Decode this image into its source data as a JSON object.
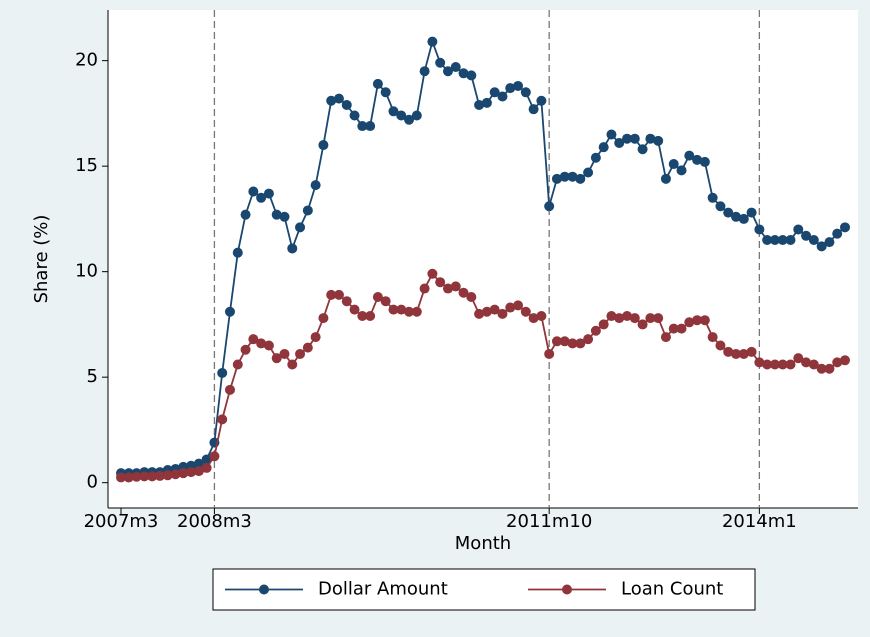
{
  "chart_data": {
    "type": "line",
    "y_label": "Share (%)",
    "x_label": "Month",
    "categories": [
      "2007m3",
      null,
      null,
      null,
      null,
      null,
      null,
      null,
      null,
      null,
      null,
      null,
      "2008m3",
      null,
      null,
      null,
      null,
      null,
      null,
      null,
      null,
      null,
      null,
      null,
      null,
      null,
      null,
      null,
      null,
      null,
      null,
      null,
      null,
      null,
      null,
      null,
      null,
      null,
      null,
      null,
      null,
      null,
      null,
      null,
      null,
      null,
      null,
      null,
      null,
      null,
      null,
      null,
      null,
      null,
      null,
      "2011m10",
      null,
      null,
      null,
      null,
      null,
      null,
      null,
      null,
      null,
      null,
      null,
      null,
      null,
      null,
      null,
      null,
      null,
      null,
      null,
      null,
      null,
      null,
      null,
      null,
      null,
      null,
      "2014m1",
      null,
      null,
      null,
      null,
      null,
      null,
      null,
      null,
      null,
      null,
      null
    ],
    "vlines": [
      "2008m3",
      "2011m10",
      "2014m1"
    ],
    "series": [
      {
        "name": "Dollar Amount",
        "color": "#1a476f",
        "values": [
          0.45,
          0.45,
          0.45,
          0.5,
          0.5,
          0.5,
          0.6,
          0.65,
          0.75,
          0.8,
          0.9,
          1.1,
          1.9,
          5.2,
          8.1,
          10.9,
          12.7,
          13.8,
          13.5,
          13.7,
          12.7,
          12.6,
          11.1,
          12.1,
          12.9,
          14.1,
          16.0,
          18.1,
          18.2,
          17.9,
          17.4,
          16.9,
          16.9,
          18.9,
          18.5,
          17.6,
          17.4,
          17.2,
          17.4,
          19.5,
          20.9,
          19.9,
          19.5,
          19.7,
          19.4,
          19.3,
          17.9,
          18.0,
          18.5,
          18.3,
          18.7,
          18.8,
          18.5,
          17.7,
          18.1,
          13.1,
          14.4,
          14.5,
          14.5,
          14.4,
          14.7,
          15.4,
          15.9,
          16.5,
          16.1,
          16.3,
          16.3,
          15.8,
          16.3,
          16.2,
          14.4,
          15.1,
          14.8,
          15.5,
          15.3,
          15.2,
          13.5,
          13.1,
          12.8,
          12.6,
          12.5,
          12.8,
          12.0,
          11.5,
          11.5,
          11.5,
          11.5,
          12.0,
          11.7,
          11.5,
          11.2,
          11.4,
          11.8,
          12.1
        ]
      },
      {
        "name": "Loan Count",
        "color": "#90353b",
        "values": [
          0.25,
          0.25,
          0.28,
          0.3,
          0.3,
          0.32,
          0.35,
          0.4,
          0.45,
          0.5,
          0.55,
          0.7,
          1.25,
          3.0,
          4.4,
          5.6,
          6.3,
          6.8,
          6.6,
          6.5,
          5.9,
          6.1,
          5.6,
          6.1,
          6.4,
          6.9,
          7.8,
          8.9,
          8.9,
          8.6,
          8.2,
          7.9,
          7.9,
          8.8,
          8.6,
          8.2,
          8.2,
          8.1,
          8.1,
          9.2,
          9.9,
          9.5,
          9.2,
          9.3,
          9.0,
          8.8,
          8.0,
          8.1,
          8.2,
          8.0,
          8.3,
          8.4,
          8.1,
          7.8,
          7.9,
          6.1,
          6.7,
          6.7,
          6.6,
          6.6,
          6.8,
          7.2,
          7.5,
          7.9,
          7.8,
          7.9,
          7.8,
          7.5,
          7.8,
          7.8,
          6.9,
          7.3,
          7.3,
          7.6,
          7.7,
          7.7,
          6.9,
          6.5,
          6.2,
          6.1,
          6.1,
          6.2,
          5.7,
          5.6,
          5.6,
          5.6,
          5.6,
          5.9,
          5.7,
          5.6,
          5.4,
          5.4,
          5.7,
          5.8
        ]
      }
    ],
    "ylim": [
      -1.2,
      22.4
    ],
    "yticks": [
      0,
      5,
      10,
      15,
      20
    ]
  }
}
